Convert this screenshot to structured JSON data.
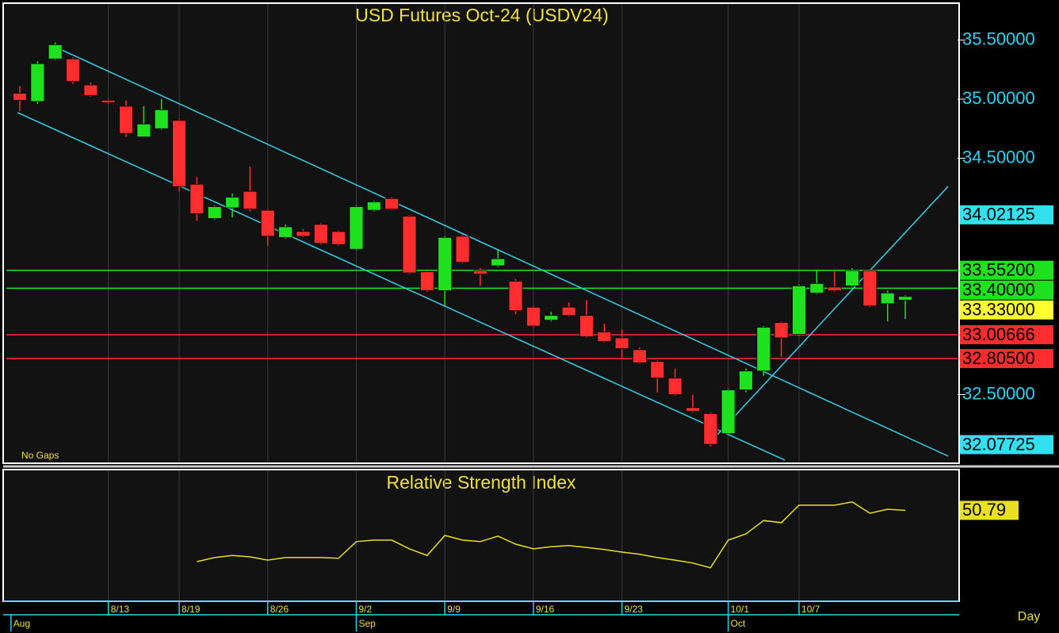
{
  "chart_data": [
    {
      "type": "candlestick",
      "title": "USD Futures  Oct-24  (USDV24)",
      "note": "No Gaps",
      "x_label": "Day",
      "open": [
        35.05,
        34.98,
        35.34,
        35.34,
        35.12,
        34.99,
        34.94,
        34.68,
        34.75,
        34.82,
        34.28,
        33.99,
        34.08,
        34.22,
        34.06,
        33.83,
        33.88,
        33.94,
        33.88,
        33.73,
        34.06,
        34.16,
        34.01,
        33.54,
        33.38,
        33.84,
        33.55,
        33.59,
        33.46,
        33.24,
        33.13,
        33.24,
        33.17,
        33.03,
        32.98,
        32.88,
        32.78,
        32.64,
        32.39,
        32.34,
        32.17,
        32.54,
        32.7,
        33.11,
        33.01,
        33.36,
        33.41,
        33.42,
        33.55,
        33.27,
        33.3
      ],
      "high": [
        35.11,
        35.32,
        35.48,
        35.35,
        35.14,
        35.0,
        34.99,
        34.94,
        35.0,
        34.83,
        34.34,
        34.1,
        34.2,
        34.43,
        34.07,
        33.94,
        33.9,
        33.95,
        33.89,
        34.1,
        34.14,
        34.17,
        34.02,
        33.55,
        33.84,
        33.86,
        33.57,
        33.72,
        33.48,
        33.25,
        33.2,
        33.28,
        33.3,
        33.1,
        33.05,
        32.9,
        32.79,
        32.72,
        32.5,
        32.35,
        32.55,
        32.72,
        33.08,
        33.12,
        33.43,
        33.55,
        33.55,
        33.57,
        33.56,
        33.38,
        33.34
      ],
      "low": [
        34.9,
        34.96,
        35.33,
        35.13,
        35.02,
        34.96,
        34.68,
        34.68,
        34.74,
        34.22,
        33.97,
        33.98,
        34.0,
        34.05,
        33.76,
        33.82,
        33.83,
        33.77,
        33.76,
        33.72,
        34.05,
        34.06,
        33.52,
        33.37,
        33.25,
        33.61,
        33.42,
        33.58,
        33.18,
        33.07,
        33.12,
        33.16,
        32.98,
        32.94,
        32.8,
        32.76,
        32.52,
        32.49,
        32.35,
        32.06,
        32.16,
        32.52,
        32.66,
        32.82,
        33.0,
        33.35,
        33.37,
        33.41,
        33.24,
        33.12,
        33.14
      ],
      "close": [
        34.99,
        35.3,
        35.46,
        35.15,
        35.03,
        34.97,
        34.71,
        34.79,
        34.91,
        34.26,
        34.03,
        34.09,
        34.17,
        34.07,
        33.84,
        33.92,
        33.84,
        33.78,
        33.77,
        34.09,
        34.13,
        34.07,
        33.53,
        33.38,
        33.83,
        33.62,
        33.52,
        33.65,
        33.21,
        33.08,
        33.17,
        33.17,
        32.99,
        32.95,
        32.89,
        32.77,
        32.64,
        32.5,
        32.36,
        32.08,
        32.54,
        32.7,
        33.07,
        32.98,
        33.42,
        33.44,
        33.38,
        33.55,
        33.25,
        33.36,
        33.33
      ],
      "up_color": "#1fe21f",
      "down_color": "#ff2d2d",
      "xlim": [
        -0.76,
        52.95
      ],
      "xticks": [
        {
          "value": 5,
          "label": "8/13"
        },
        {
          "value": 9,
          "label": "8/19"
        },
        {
          "value": 14,
          "label": "8/26"
        },
        {
          "value": 19,
          "label": "9/2"
        },
        {
          "value": 24,
          "label": "9/9"
        },
        {
          "value": 29,
          "label": "9/16"
        },
        {
          "value": 34,
          "label": "9/23"
        },
        {
          "value": 40,
          "label": "10/1"
        },
        {
          "value": 44,
          "label": "10/7"
        }
      ],
      "month_ticks": [
        {
          "value": -0.5,
          "label": "Aug"
        },
        {
          "value": 19,
          "label": "Sep"
        },
        {
          "value": 40,
          "label": "Oct"
        }
      ],
      "ylim": [
        31.933,
        35.805
      ],
      "yticks": [
        {
          "value": 35.5,
          "label": "35.50000"
        },
        {
          "value": 35.0,
          "label": "35.00000"
        },
        {
          "value": 34.5,
          "label": "34.50000"
        },
        {
          "value": 32.5,
          "label": "32.50000"
        }
      ],
      "price_markers": [
        {
          "value": 34.02125,
          "label": "34.02125",
          "color": "#33e0f0",
          "line": false
        },
        {
          "value": 33.552,
          "label": "33.55200",
          "color": "#1fe21f",
          "line": true
        },
        {
          "value": 33.4,
          "label": "33.40000",
          "color": "#1fe21f",
          "line": true
        },
        {
          "value": 33.33,
          "label": "33.33000",
          "color": "#ffff33",
          "line": false
        },
        {
          "value": 33.00666,
          "label": "33.00666",
          "color": "#ff2d2d",
          "line": true
        },
        {
          "value": 32.805,
          "label": "32.80500",
          "color": "#ff2d2d",
          "line": true
        },
        {
          "value": 32.07725,
          "label": "32.07725",
          "color": "#33e0f0",
          "line": false
        }
      ],
      "trendlines": [
        {
          "x": [
            1.79,
            52.42
          ],
          "y": [
            35.456,
            31.98
          ],
          "color": "#33d0e8"
        },
        {
          "x": [
            -0.13,
            43.2
          ],
          "y": [
            34.886,
            31.946
          ],
          "color": "#33d0e8"
        },
        {
          "x": [
            39.39,
            52.42
          ],
          "y": [
            32.161,
            34.262
          ],
          "color": "#33d0e8"
        }
      ]
    },
    {
      "type": "line",
      "title": "Relative Strength Index",
      "color": "#e8e020",
      "xlim": [
        -0.76,
        52.95
      ],
      "ylim": [
        26,
        62
      ],
      "values": [
        null,
        null,
        null,
        null,
        null,
        null,
        null,
        null,
        null,
        null,
        36.7,
        37.8,
        38.4,
        38.0,
        37.1,
        37.8,
        37.8,
        37.8,
        37.6,
        42.2,
        42.6,
        42.6,
        40.2,
        38.4,
        43.9,
        42.6,
        42.2,
        43.7,
        41.5,
        40.2,
        40.8,
        41.1,
        40.6,
        40.0,
        39.3,
        38.7,
        37.8,
        37.1,
        36.3,
        35.0,
        42.6,
        44.3,
        48.0,
        47.4,
        52.2,
        52.2,
        52.2,
        53.1,
        50.0,
        51.1,
        50.79
      ]
    }
  ]
}
